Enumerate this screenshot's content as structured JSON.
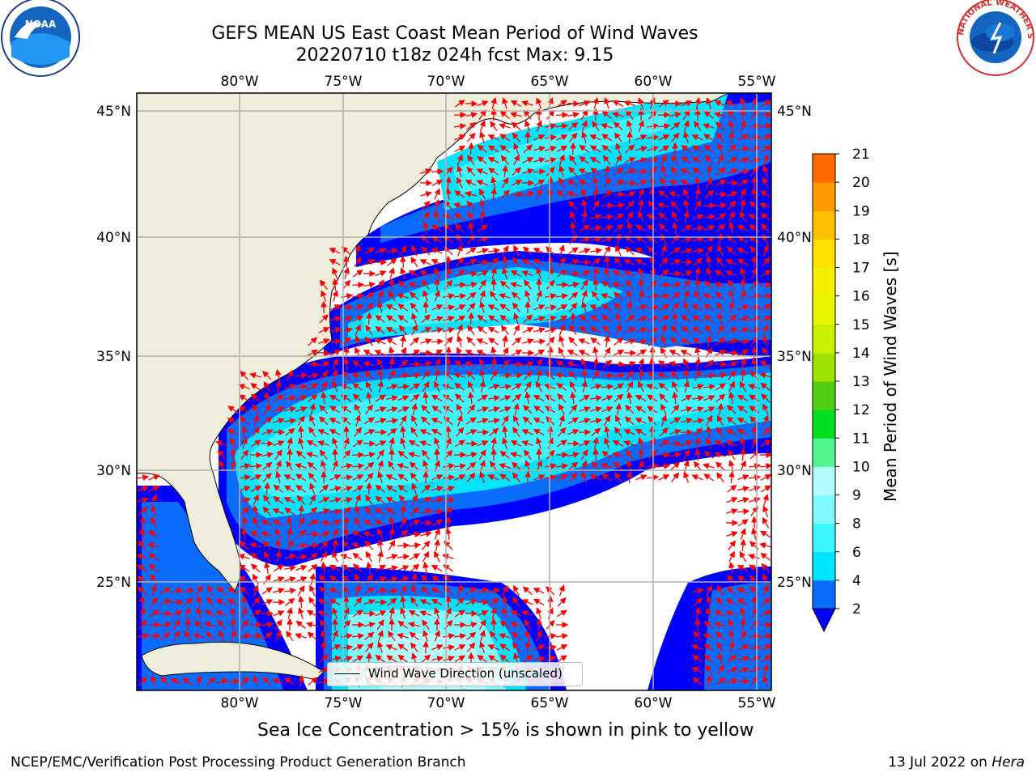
{
  "title": {
    "line1": "GEFS MEAN US East Coast Mean Period of Wind Waves",
    "line2": "20220710 t18z 024h fcst   Max: 9.15"
  },
  "logos": {
    "left": "NOAA",
    "right": "NATIONAL WEATHER SERVICE"
  },
  "map": {
    "lon_labels": [
      "80°W",
      "75°W",
      "70°W",
      "65°W",
      "60°W",
      "55°W"
    ],
    "lat_labels": [
      "45°N",
      "40°N",
      "35°N",
      "30°N",
      "25°N"
    ],
    "legend": "Wind Wave Direction (unscaled)",
    "land_color": "#efeddc",
    "arrow_color": "#ff0000",
    "grid_color": "#b0b0b0"
  },
  "colorbar": {
    "label": "Mean Period of Wind Waves [s]",
    "ticks": [
      "2",
      "4",
      "6",
      "8",
      "9",
      "10",
      "11",
      "12",
      "13",
      "14",
      "15",
      "16",
      "17",
      "18",
      "19",
      "20",
      "21"
    ],
    "colors": [
      "#0a6cff",
      "#00e5ff",
      "#3df7ff",
      "#80faff",
      "#b4fdff",
      "#50f590",
      "#00e020",
      "#50d010",
      "#9ee000",
      "#c8f000",
      "#e6f500",
      "#f5f000",
      "#ffe000",
      "#ffc000",
      "#ff9a00",
      "#ff6a00",
      "#ff3a00",
      "#ff1a00",
      "#ff0000"
    ],
    "extend_color": "#0000ff"
  },
  "note": "Sea Ice Concentration > 15% is shown in pink to yellow",
  "footer": {
    "left": "NCEP/EMC/Verification Post Processing Product Generation Branch",
    "right_date": "13 Jul 2022 on",
    "right_host": "Hera"
  }
}
